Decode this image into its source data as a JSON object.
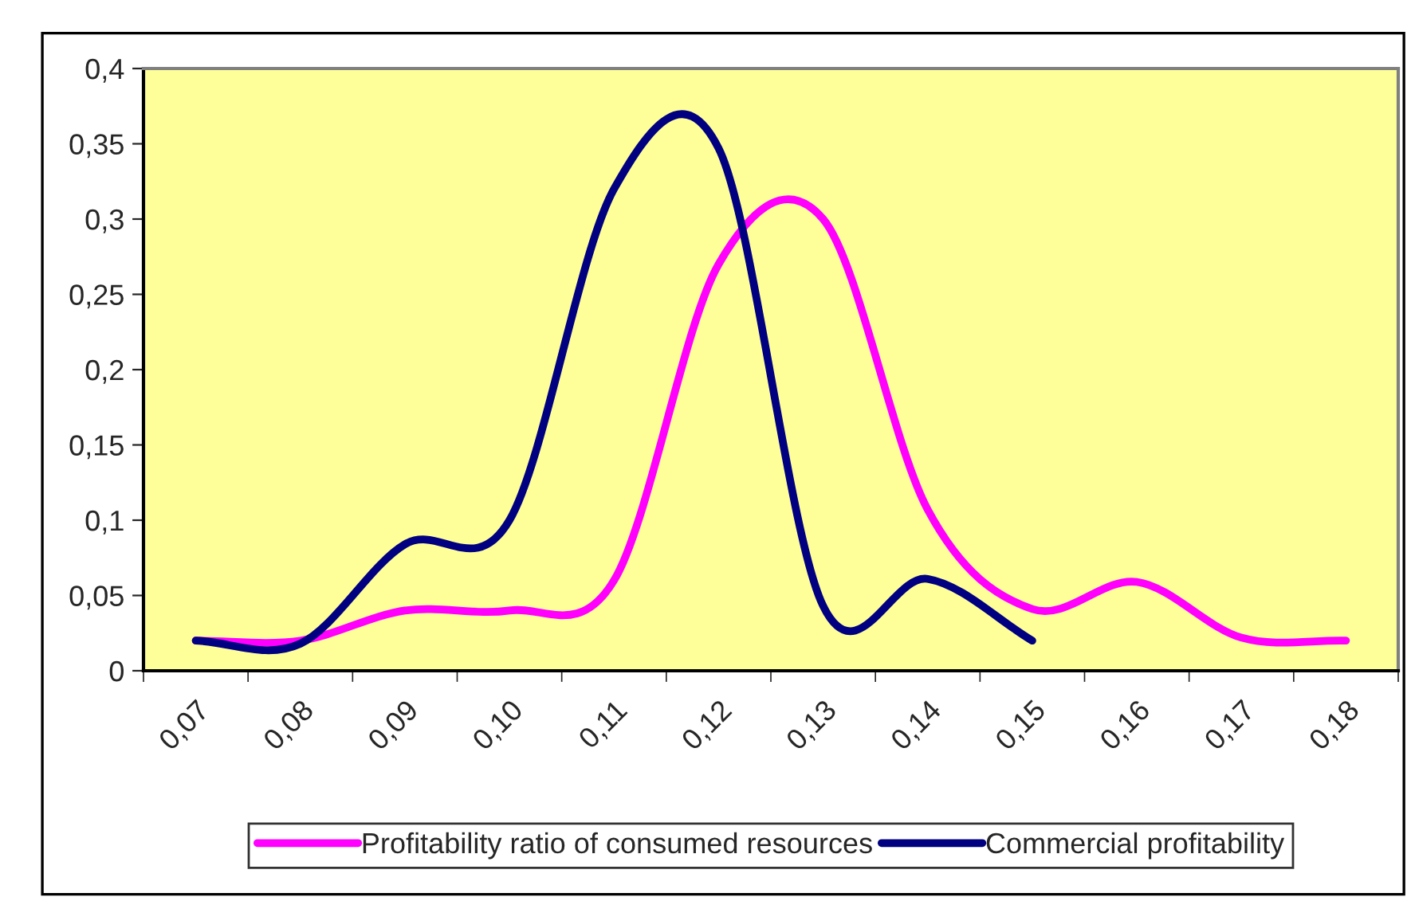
{
  "chart_data": {
    "type": "line",
    "categories": [
      "0,07",
      "0,08",
      "0,09",
      "0,10",
      "0,11",
      "0,12",
      "0,13",
      "0,14",
      "0,15",
      "0,16",
      "0,17",
      "0,18"
    ],
    "series": [
      {
        "name": "Profitability ratio of consumed resources",
        "color": "#ff00ff",
        "values": [
          0.02,
          0.02,
          0.04,
          0.04,
          0.06,
          0.27,
          0.3,
          0.107,
          0.041,
          0.059,
          0.022,
          0.02
        ]
      },
      {
        "name": "Commercial profitability",
        "color": "#000080",
        "values": [
          0.02,
          0.018,
          0.084,
          0.1,
          0.32,
          0.347,
          0.043,
          0.061,
          0.02,
          null,
          null,
          null
        ]
      }
    ],
    "ylim": [
      0,
      0.4
    ],
    "yticks": [
      {
        "value": 0,
        "label": "0"
      },
      {
        "value": 0.05,
        "label": "0,05"
      },
      {
        "value": 0.1,
        "label": "0,1"
      },
      {
        "value": 0.15,
        "label": "0,15"
      },
      {
        "value": 0.2,
        "label": "0,2"
      },
      {
        "value": 0.25,
        "label": "0,25"
      },
      {
        "value": 0.3,
        "label": "0,3"
      },
      {
        "value": 0.35,
        "label": "0,35"
      },
      {
        "value": 0.4,
        "label": "0,4"
      }
    ],
    "grid": false,
    "legend": "bottom",
    "marker": "none",
    "line_style": "solid"
  }
}
